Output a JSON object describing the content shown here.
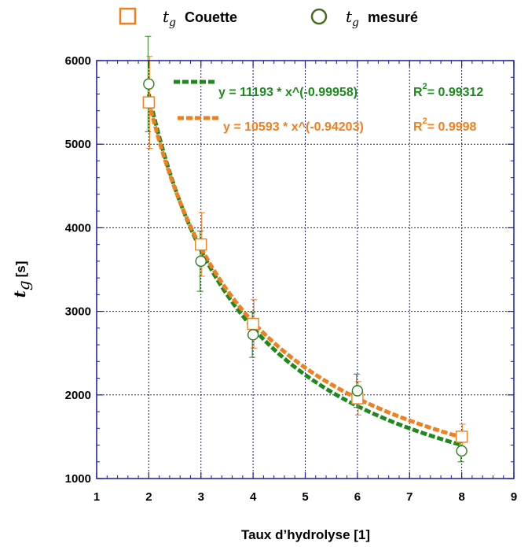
{
  "chart_data": {
    "type": "scatter",
    "title": "",
    "xlabel": "Taux d’hydrolyse [1]",
    "ylabel": {
      "symbol": "t",
      "subscript": "g",
      "unit": "[s]"
    },
    "xlim": [
      1,
      9
    ],
    "ylim": [
      1000,
      6000
    ],
    "xticks": [
      "1",
      "2",
      "3",
      "4",
      "5",
      "6",
      "7",
      "8",
      "9"
    ],
    "yticks": [
      "1000",
      "2000",
      "3000",
      "4000",
      "5000",
      "6000"
    ],
    "grid": true,
    "legend_position": "top",
    "series": [
      {
        "key": "couette",
        "name": "Couette",
        "symbol": "t",
        "subscript": "g",
        "marker": "square",
        "color": "#F07F1F",
        "x": [
          2,
          3,
          4,
          6,
          8
        ],
        "y": [
          5500,
          3800,
          2850,
          1960,
          1500
        ],
        "err": [
          550,
          380,
          290,
          200,
          150
        ],
        "fit": {
          "a": 10593,
          "b": -0.94203,
          "equation": "y = 10593 * x^(-0.94203)",
          "r2_label": "R",
          "r2_exp": "2",
          "r2_value": "= 0.9998"
        }
      },
      {
        "key": "mesure",
        "name": "mesuré",
        "symbol": "t",
        "subscript": "g",
        "marker": "circle",
        "color": "#2E7D1E",
        "x": [
          2,
          3,
          4,
          6,
          8
        ],
        "y": [
          5720,
          3600,
          2720,
          2050,
          1330
        ],
        "err": [
          570,
          360,
          270,
          200,
          130
        ],
        "fit": {
          "a": 11193,
          "b": -0.99958,
          "equation": "y = 11193 * x^(-0.99958)",
          "r2_label": "R",
          "r2_exp": "2",
          "r2_value": "= 0.99312"
        }
      }
    ]
  }
}
